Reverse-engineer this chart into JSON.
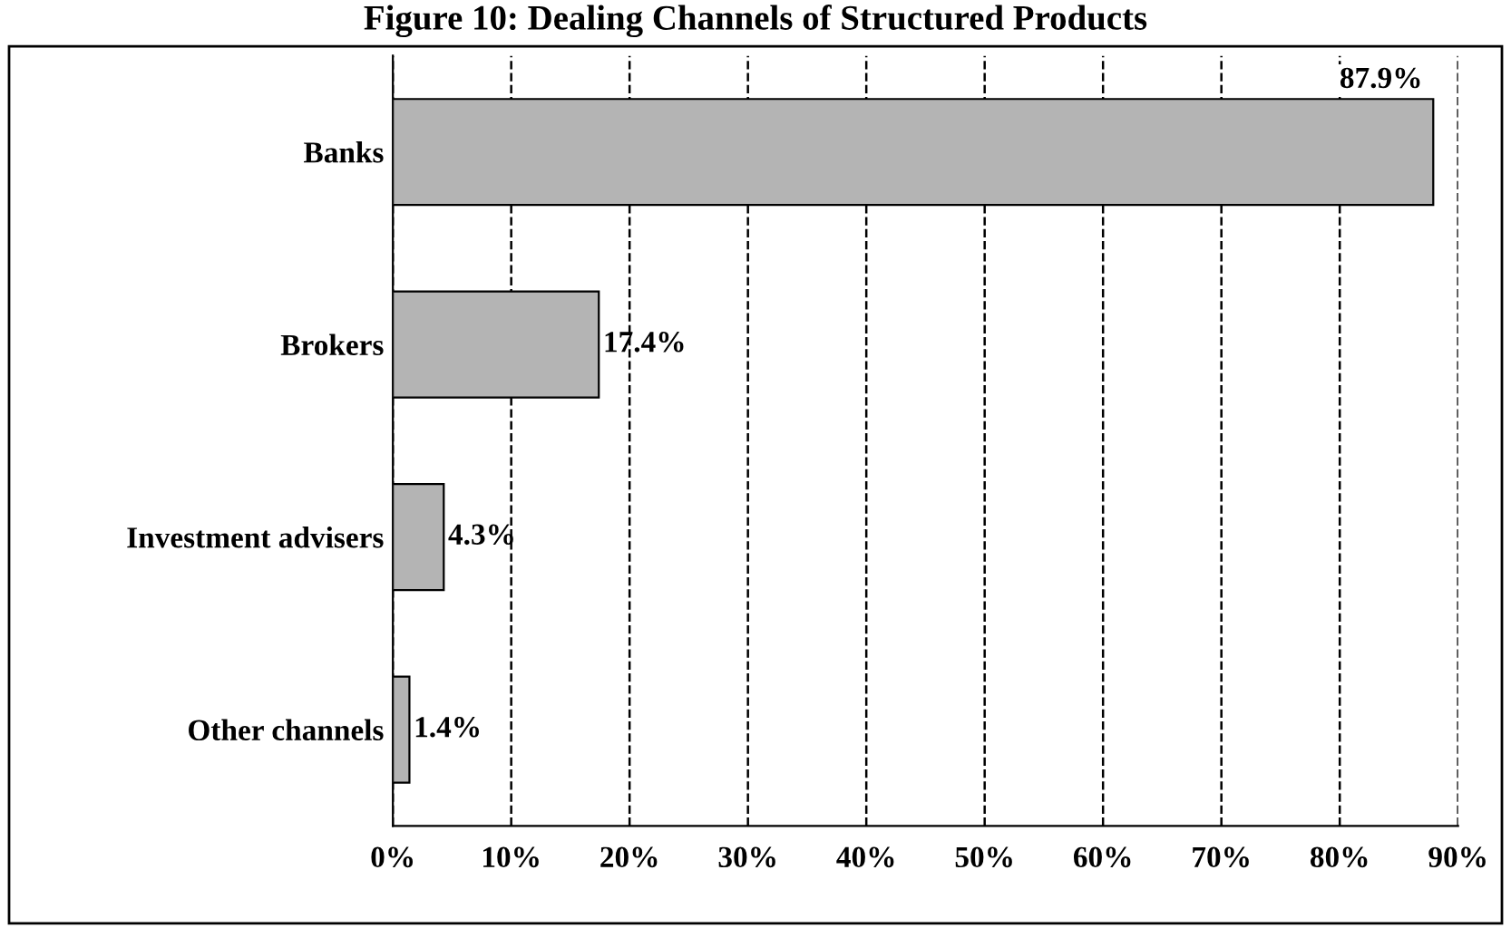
{
  "chart_data": {
    "type": "bar",
    "orientation": "horizontal",
    "title": "Figure 10: Dealing Channels of Structured Products",
    "categories": [
      "Banks",
      "Brokers",
      "Investment advisers",
      "Other channels"
    ],
    "values": [
      87.9,
      17.4,
      4.3,
      1.4
    ],
    "value_labels": [
      "87.9%",
      "17.4%",
      "4.3%",
      "1.4%"
    ],
    "color": "#b4b4b4",
    "xlim": [
      0,
      90
    ],
    "xticks": [
      {
        "value": 0,
        "label": "0%"
      },
      {
        "value": 10,
        "label": "10%"
      },
      {
        "value": 20,
        "label": "20%"
      },
      {
        "value": 30,
        "label": "30%"
      },
      {
        "value": 40,
        "label": "40%"
      },
      {
        "value": 50,
        "label": "50%"
      },
      {
        "value": 60,
        "label": "60%"
      },
      {
        "value": 70,
        "label": "70%"
      },
      {
        "value": 80,
        "label": "80%"
      },
      {
        "value": 90,
        "label": "90%"
      }
    ],
    "grid": "x",
    "line_style": "dashed"
  }
}
